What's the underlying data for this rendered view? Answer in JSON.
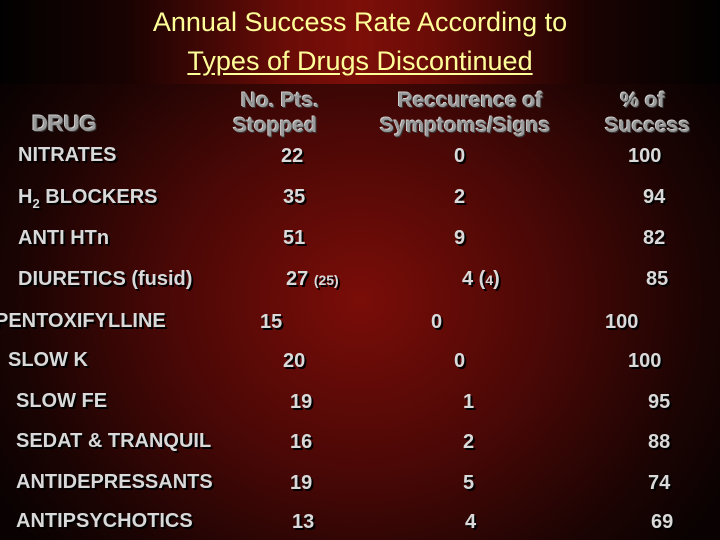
{
  "title": {
    "line1": "Annual Success Rate According to",
    "line2": "Types of Drugs Discontinued"
  },
  "headers": {
    "drug": "DRUG",
    "pts_l1": "No. Pts.",
    "pts_l2": "Stopped",
    "rec_l1": "Reccurence of",
    "rec_l2": "Symptoms/Signs",
    "succ_l1": "% of",
    "succ_l2": "Success"
  },
  "rows": [
    {
      "drug": "NITRATES",
      "pts": "22",
      "rec": "0",
      "succ": "100"
    },
    {
      "drug_main": "H",
      "drug_sub": "2",
      "drug_rest": " BLOCKERS",
      "pts": "35",
      "rec": "2",
      "succ": "94"
    },
    {
      "drug": "ANTI  HTn",
      "pts": "51",
      "rec": "9",
      "succ": "82"
    },
    {
      "drug": "DIURETICS (fusid)",
      "pts": "27",
      "pts_note": "(25)",
      "rec": "4 (",
      "rec_note": "4",
      "rec_close": ")",
      "succ": "85"
    },
    {
      "drug": "PENTOXIFYLLINE",
      "pts": "15",
      "rec": "0",
      "succ": "100"
    },
    {
      "drug": "SLOW  K",
      "pts": "20",
      "rec": "0",
      "succ": "100"
    },
    {
      "drug": "SLOW  FE",
      "pts": "19",
      "rec": "1",
      "succ": "95"
    },
    {
      "drug": "SEDAT & TRANQUIL",
      "pts": "16",
      "rec": "2",
      "succ": "88"
    },
    {
      "drug": "ANTIDEPRESSANTS",
      "pts": "19",
      "rec": "5",
      "succ": "74"
    },
    {
      "drug": "ANTIPSYCHOTICS",
      "pts": "13",
      "rec": "4",
      "succ": "69"
    }
  ]
}
